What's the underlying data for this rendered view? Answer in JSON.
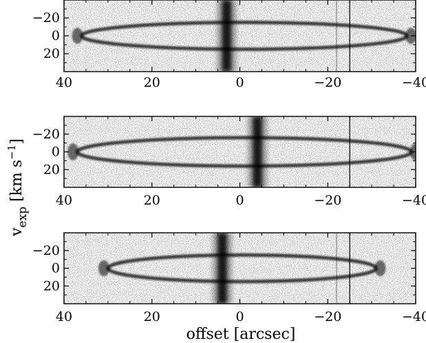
{
  "chart_data": [
    {
      "type": "heatmap",
      "panel": "top",
      "xlim": [
        40,
        -40
      ],
      "ylim": [
        40,
        -40
      ],
      "x_ticks": [
        "40",
        "20",
        "0",
        "−20",
        "−40"
      ],
      "x_tick_values": [
        40,
        20,
        0,
        -20,
        -40
      ],
      "y_ticks": [
        "−20",
        "0",
        "20"
      ],
      "y_tick_values": [
        -20,
        0,
        20
      ],
      "ellipse": {
        "x_min": -38,
        "x_max": 36,
        "v_half_width": 15
      },
      "central_dark_band_offset": 3,
      "vertical_lines_offset": [
        -25,
        -22
      ]
    },
    {
      "type": "heatmap",
      "panel": "middle",
      "xlim": [
        40,
        -40
      ],
      "ylim": [
        40,
        -40
      ],
      "x_ticks": [
        "40",
        "20",
        "0",
        "−20",
        "−40"
      ],
      "x_tick_values": [
        40,
        20,
        0,
        -20,
        -40
      ],
      "y_ticks": [
        "−20",
        "0",
        "20"
      ],
      "y_tick_values": [
        -20,
        0,
        20
      ],
      "ellipse": {
        "x_min": -39,
        "x_max": 37,
        "v_half_width": 16
      },
      "central_dark_band_offset": -4,
      "vertical_lines_offset": [
        -25
      ]
    },
    {
      "type": "heatmap",
      "panel": "bottom",
      "xlim": [
        40,
        -40
      ],
      "ylim": [
        40,
        -40
      ],
      "x_ticks": [
        "40",
        "20",
        "0",
        "−20",
        "−40"
      ],
      "x_tick_values": [
        40,
        20,
        0,
        -20,
        -40
      ],
      "y_ticks": [
        "−20",
        "0",
        "20"
      ],
      "y_tick_values": [
        -20,
        0,
        20
      ],
      "ellipse": {
        "x_min": -31,
        "x_max": 30,
        "v_half_width": 15
      },
      "central_dark_band_offset": 4,
      "vertical_lines_offset": [
        -25,
        -22
      ]
    }
  ],
  "labels": {
    "xlabel": "offset [arcsec]",
    "ylabel_main": "v",
    "ylabel_sub": "exp",
    "ylabel_units": " [km s",
    "ylabel_sup": "−1",
    "ylabel_close": "]"
  },
  "colors": {
    "background": "#ffffff",
    "frame": "#000000",
    "ink": "#000000",
    "noise": "#555555"
  }
}
